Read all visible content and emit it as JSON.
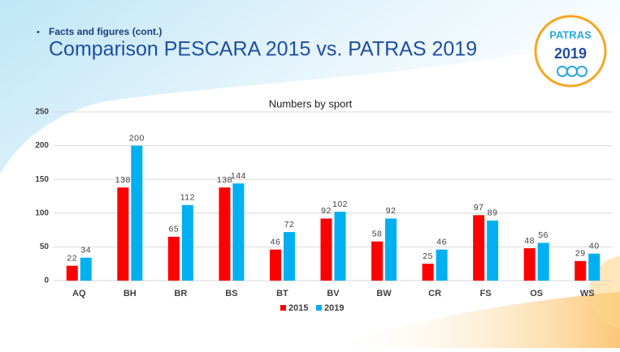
{
  "header": {
    "bullet_text": "Facts and figures (cont.)",
    "title": "Comparison PESCARA 2015 vs. PATRAS 2019"
  },
  "logo": {
    "name": "PATRAS",
    "year": "2019"
  },
  "chart_data": {
    "type": "bar",
    "title": "Numbers by sport",
    "categories": [
      "AQ",
      "BH",
      "BR",
      "BS",
      "BT",
      "BV",
      "BW",
      "CR",
      "FS",
      "OS",
      "WS"
    ],
    "series": [
      {
        "name": "2015",
        "color": "#ff0000",
        "values": [
          22,
          138,
          65,
          138,
          46,
          92,
          58,
          25,
          97,
          48,
          29
        ]
      },
      {
        "name": "2019",
        "color": "#00b0f0",
        "values": [
          34,
          200,
          112,
          144,
          72,
          102,
          92,
          46,
          89,
          56,
          40
        ]
      }
    ],
    "ylim": [
      0,
      250
    ],
    "yticks": [
      0,
      50,
      100,
      150,
      200,
      250
    ],
    "grid": true,
    "legend": "bottom"
  }
}
